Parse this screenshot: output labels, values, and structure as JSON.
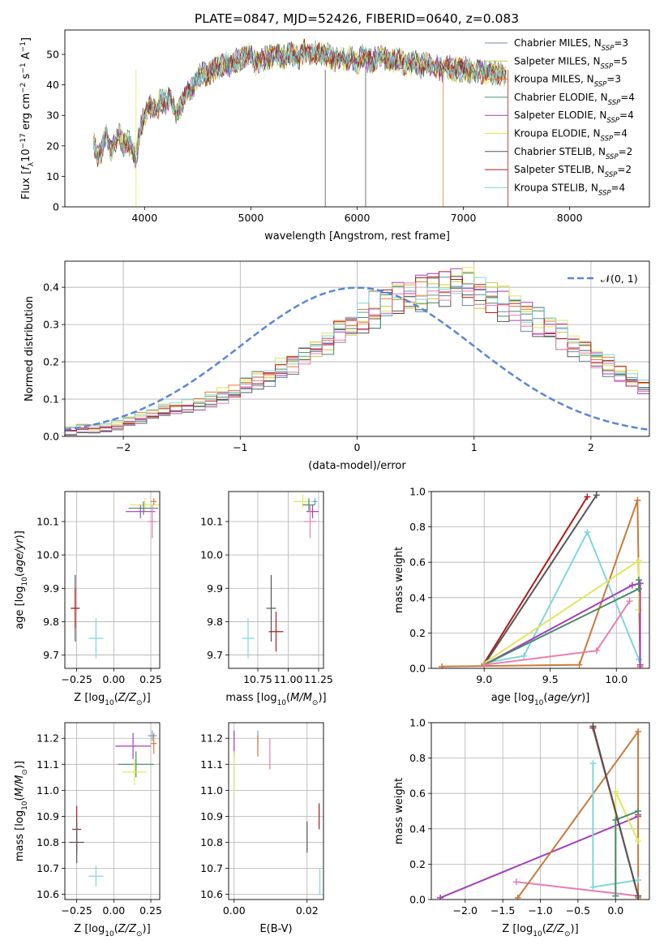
{
  "figure": {
    "title": "PLATE=0847, MJD=52426, FIBERID=0640, z=0.083"
  },
  "colors": {
    "chabrier_miles": "#6a8fa8",
    "salpeter_miles": "#c9cc3f",
    "kroupa_miles": "#e07a2e",
    "chabrier_elodie": "#4a8a6a",
    "salpeter_elodie": "#a43fb8",
    "kroupa_elodie": "#dfe85a",
    "chabrier_stelib": "#555555",
    "salpeter_stelib": "#b01c1c",
    "kroupa_stelib": "#7fd6dc",
    "normal_curve": "#5b86d2",
    "pink": "#e87fb0",
    "blue": "#6a9fe0",
    "orange2": "#c87a3a"
  },
  "chart_data": [
    {
      "id": "spectrum",
      "type": "line",
      "title": "",
      "xlabel": "wavelength [Angstrom, rest frame]",
      "ylabel": "Flux [f_λ 10^-17 erg cm^-2 s^-1 A^-1]",
      "xlim": [
        3250,
        8750
      ],
      "ylim": [
        0,
        58
      ],
      "xticks": [
        4000,
        5000,
        6000,
        7000,
        8000
      ],
      "yticks": [
        0,
        10,
        20,
        30,
        40,
        50
      ],
      "grid": false,
      "legend_position": "right",
      "legend": [
        {
          "label": "Chabrier MILES, N",
          "sub": "SSP",
          "suffix": "=3",
          "color": "chabrier_miles"
        },
        {
          "label": "Salpeter MILES, N",
          "sub": "SSP",
          "suffix": "=5",
          "color": "salpeter_miles"
        },
        {
          "label": "Kroupa MILES, N",
          "sub": "SSP",
          "suffix": "=3",
          "color": "kroupa_miles"
        },
        {
          "label": "Chabrier ELODIE, N",
          "sub": "SSP",
          "suffix": "=4",
          "color": "chabrier_elodie"
        },
        {
          "label": "Salpeter ELODIE, N",
          "sub": "SSP",
          "suffix": "=4",
          "color": "salpeter_elodie"
        },
        {
          "label": "Kroupa ELODIE, N",
          "sub": "SSP",
          "suffix": "=4",
          "color": "kroupa_elodie"
        },
        {
          "label": "Chabrier STELIB, N",
          "sub": "SSP",
          "suffix": "=2",
          "color": "chabrier_stelib"
        },
        {
          "label": "Salpeter STELIB, N",
          "sub": "SSP",
          "suffix": "=2",
          "color": "salpeter_stelib"
        },
        {
          "label": "Kroupa STELIB, N",
          "sub": "SSP",
          "suffix": "=4",
          "color": "kroupa_stelib"
        }
      ],
      "series_wavelength": [
        3520,
        3560,
        3600,
        3640,
        3680,
        3720,
        3760,
        3800,
        3840,
        3880,
        3920,
        3960,
        4000,
        4050,
        4100,
        4150,
        4200,
        4250,
        4300,
        4350,
        4400,
        4450,
        4500,
        4550,
        4600,
        4650,
        4700,
        4750,
        4800,
        4850,
        4900,
        4950,
        5000,
        5050,
        5100,
        5150,
        5200,
        5250,
        5300,
        5350,
        5400,
        5450,
        5500,
        5550,
        5600,
        5650,
        5700,
        5750,
        5800,
        5850,
        5900,
        5950,
        6000,
        6050,
        6100,
        6150,
        6200,
        6250,
        6300,
        6350,
        6400,
        6450,
        6500,
        6550,
        6600,
        6650,
        6700,
        6750,
        6800,
        6850,
        6900,
        6950,
        7000,
        7050,
        7100,
        7150,
        7200,
        7250,
        7300,
        7350,
        7400
      ],
      "series_flux": [
        22,
        16,
        19,
        24,
        18,
        21,
        24,
        20,
        22,
        19,
        16,
        26,
        30,
        33,
        31,
        35,
        34,
        36,
        30,
        34,
        38,
        39,
        42,
        44,
        43,
        45,
        46,
        47,
        46,
        48,
        48,
        49,
        50,
        47,
        48,
        49,
        49,
        50,
        49,
        50,
        50,
        49,
        51,
        50,
        51,
        50,
        50,
        49,
        48,
        49,
        48,
        49,
        47,
        50,
        48,
        48,
        49,
        49,
        48,
        48,
        48,
        47,
        47,
        47,
        46,
        47,
        46,
        46,
        45,
        46,
        45,
        45,
        45,
        45,
        44,
        45,
        44,
        44,
        44,
        44,
        43
      ]
    },
    {
      "id": "residuals",
      "type": "bar",
      "title": "",
      "xlabel": "(data-model)/error",
      "ylabel": "Normed distribution",
      "xlim": [
        -2.5,
        2.5
      ],
      "ylim": [
        0,
        0.47
      ],
      "xticks": [
        -2,
        -1,
        0,
        1,
        2
      ],
      "yticks": [
        0.0,
        0.1,
        0.2,
        0.3,
        0.4
      ],
      "grid": true,
      "legend_position": "top-right",
      "legend": [
        {
          "label": "𝒩(0, 1)",
          "color": "normal_curve",
          "dashed": true
        }
      ],
      "bin_edges_start": -2.5,
      "bin_width": 0.1,
      "base_hist": [
        0.015,
        0.02,
        0.02,
        0.025,
        0.03,
        0.04,
        0.05,
        0.06,
        0.07,
        0.075,
        0.08,
        0.085,
        0.1,
        0.11,
        0.12,
        0.14,
        0.15,
        0.16,
        0.18,
        0.2,
        0.22,
        0.24,
        0.26,
        0.28,
        0.3,
        0.32,
        0.34,
        0.36,
        0.37,
        0.38,
        0.39,
        0.4,
        0.4,
        0.41,
        0.4,
        0.38,
        0.37,
        0.36,
        0.34,
        0.33,
        0.31,
        0.29,
        0.27,
        0.25,
        0.23,
        0.21,
        0.19,
        0.17,
        0.15,
        0.13,
        0.11
      ]
    },
    {
      "id": "age_vs_Z",
      "type": "scatter",
      "xlabel": "Z [log10(Z/Z☉)]",
      "ylabel": "age  [log10(age/yr)]",
      "xlim": [
        -0.33,
        0.31
      ],
      "ylim": [
        9.66,
        10.19
      ],
      "xticks": [
        -0.25,
        0.0,
        0.25
      ],
      "yticks": [
        9.7,
        9.8,
        9.9,
        10.0,
        10.1
      ],
      "grid": true,
      "points": [
        {
          "x": 0.21,
          "y": 10.15,
          "xerr": 0.1,
          "yerr": 0.02,
          "color": "kroupa_elodie"
        },
        {
          "x": 0.2,
          "y": 10.14,
          "xerr": 0.1,
          "yerr": 0.02,
          "color": "chabrier_elodie"
        },
        {
          "x": 0.18,
          "y": 10.13,
          "xerr": 0.1,
          "yerr": 0.02,
          "color": "salpeter_elodie"
        },
        {
          "x": 0.27,
          "y": 10.16,
          "xerr": 0.02,
          "yerr": 0.01,
          "color": "kroupa_miles"
        },
        {
          "x": 0.26,
          "y": 10.1,
          "xerr": 0.03,
          "yerr": 0.05,
          "color": "pink"
        },
        {
          "x": -0.26,
          "y": 9.84,
          "xerr": 0.03,
          "yerr": 0.1,
          "color": "chabrier_stelib"
        },
        {
          "x": -0.26,
          "y": 9.84,
          "xerr": 0.03,
          "yerr": 0.06,
          "color": "salpeter_stelib"
        },
        {
          "x": -0.12,
          "y": 9.75,
          "xerr": 0.05,
          "yerr": 0.06,
          "color": "kroupa_stelib"
        }
      ]
    },
    {
      "id": "age_vs_mass",
      "type": "scatter",
      "xlabel": "mass [log10(M/M☉)]",
      "ylabel": "",
      "xlim": [
        10.51,
        11.29
      ],
      "ylim": [
        9.66,
        10.19
      ],
      "xticks": [
        10.75,
        11.0,
        11.25
      ],
      "yticks": [
        9.7,
        9.8,
        9.9,
        10.0,
        10.1
      ],
      "grid": true,
      "points": [
        {
          "x": 11.12,
          "y": 10.16,
          "xerr": 0.08,
          "yerr": 0.02,
          "color": "kroupa_elodie"
        },
        {
          "x": 11.17,
          "y": 10.15,
          "xerr": 0.05,
          "yerr": 0.02,
          "color": "chabrier_elodie"
        },
        {
          "x": 11.2,
          "y": 10.13,
          "xerr": 0.05,
          "yerr": 0.02,
          "color": "salpeter_elodie"
        },
        {
          "x": 11.22,
          "y": 10.16,
          "xerr": 0.02,
          "yerr": 0.01,
          "color": "blue"
        },
        {
          "x": 11.18,
          "y": 10.1,
          "xerr": 0.05,
          "yerr": 0.05,
          "color": "pink"
        },
        {
          "x": 10.86,
          "y": 9.84,
          "xerr": 0.04,
          "yerr": 0.1,
          "color": "chabrier_stelib"
        },
        {
          "x": 10.9,
          "y": 9.77,
          "xerr": 0.06,
          "yerr": 0.06,
          "color": "salpeter_stelib"
        },
        {
          "x": 10.67,
          "y": 9.75,
          "xerr": 0.05,
          "yerr": 0.06,
          "color": "kroupa_stelib"
        }
      ]
    },
    {
      "id": "massweight_vs_age",
      "type": "line",
      "xlabel": "age  [log10(age/yr)]",
      "ylabel": "mass weight",
      "xlim": [
        8.6,
        10.25
      ],
      "ylim": [
        0,
        1.0
      ],
      "xticks": [
        9.0,
        9.5,
        10.0
      ],
      "yticks": [
        0.0,
        0.2,
        0.4,
        0.6,
        0.8,
        1.0
      ],
      "grid": true,
      "series": [
        {
          "color": "salpeter_stelib",
          "x": [
            9.0,
            9.78
          ],
          "y": [
            0.03,
            0.97
          ]
        },
        {
          "color": "chabrier_stelib",
          "x": [
            9.0,
            9.85
          ],
          "y": [
            0.02,
            0.98
          ]
        },
        {
          "color": "orange2",
          "x": [
            8.68,
            9.72,
            10.16,
            10.18
          ],
          "y": [
            0.01,
            0.02,
            0.95,
            0.01
          ]
        },
        {
          "color": "kroupa_stelib",
          "x": [
            9.0,
            9.3,
            9.78,
            10.17
          ],
          "y": [
            0.03,
            0.07,
            0.77,
            0.05
          ]
        },
        {
          "color": "kroupa_elodie",
          "x": [
            9.0,
            10.17,
            10.17
          ],
          "y": [
            0.03,
            0.61,
            0.33
          ]
        },
        {
          "color": "salpeter_elodie",
          "x": [
            9.0,
            10.12,
            10.18,
            10.18
          ],
          "y": [
            0.02,
            0.47,
            0.48,
            0.02
          ]
        },
        {
          "color": "chabrier_elodie",
          "x": [
            9.0,
            10.17,
            10.17
          ],
          "y": [
            0.02,
            0.45,
            0.5
          ]
        },
        {
          "color": "pink",
          "x": [
            9.0,
            9.85,
            10.1
          ],
          "y": [
            0.02,
            0.1,
            0.38
          ]
        }
      ]
    },
    {
      "id": "mass_vs_Z",
      "type": "scatter",
      "xlabel": "Z [log10(Z/Z☉)]",
      "ylabel": "mass [log10(M/M☉)]",
      "xlim": [
        -0.33,
        0.31
      ],
      "ylim": [
        10.58,
        11.26
      ],
      "xticks": [
        -0.25,
        0.0,
        0.25
      ],
      "yticks": [
        10.6,
        10.7,
        10.8,
        10.9,
        11.0,
        11.1,
        11.2
      ],
      "grid": true,
      "points": [
        {
          "x": 0.26,
          "y": 11.21,
          "xerr": 0.03,
          "yerr": 0.02,
          "color": "blue"
        },
        {
          "x": 0.27,
          "y": 11.18,
          "xerr": 0.02,
          "yerr": 0.04,
          "color": "kroupa_miles"
        },
        {
          "x": 0.13,
          "y": 11.17,
          "xerr": 0.12,
          "yerr": 0.05,
          "color": "salpeter_elodie"
        },
        {
          "x": 0.15,
          "y": 11.1,
          "xerr": 0.12,
          "yerr": 0.05,
          "color": "chabrier_elodie"
        },
        {
          "x": 0.14,
          "y": 11.07,
          "xerr": 0.08,
          "yerr": 0.05,
          "color": "kroupa_elodie"
        },
        {
          "x": -0.25,
          "y": 10.85,
          "xerr": 0.03,
          "yerr": 0.09,
          "color": "salpeter_stelib"
        },
        {
          "x": -0.25,
          "y": 10.8,
          "xerr": 0.05,
          "yerr": 0.08,
          "color": "chabrier_stelib"
        },
        {
          "x": -0.12,
          "y": 10.67,
          "xerr": 0.05,
          "yerr": 0.04,
          "color": "kroupa_stelib"
        }
      ]
    },
    {
      "id": "mass_vs_ebv",
      "type": "scatter",
      "xlabel": "E(B-V)",
      "ylabel": "",
      "xlim": [
        -0.0015,
        0.0245
      ],
      "ylim": [
        10.58,
        11.26
      ],
      "xticks": [
        0.0,
        0.02
      ],
      "xticklabels": [
        "0.00",
        "0.02"
      ],
      "yticks": [
        10.6,
        10.7,
        10.8,
        10.9,
        11.0,
        11.1,
        11.2
      ],
      "grid": true,
      "points": [
        {
          "x": 0.0,
          "y": 11.18,
          "xerr": 0.0,
          "yerr": 0.05,
          "color": "salpeter_elodie"
        },
        {
          "x": 0.0,
          "y": 11.07,
          "xerr": 0.0,
          "yerr": 0.08,
          "color": "kroupa_elodie"
        },
        {
          "x": 0.0065,
          "y": 11.19,
          "xerr": 0.0,
          "yerr": 0.04,
          "color": "blue"
        },
        {
          "x": 0.0065,
          "y": 11.17,
          "xerr": 0.0,
          "yerr": 0.04,
          "color": "kroupa_miles"
        },
        {
          "x": 0.0098,
          "y": 11.14,
          "xerr": 0.0,
          "yerr": 0.06,
          "color": "pink"
        },
        {
          "x": 0.02,
          "y": 10.82,
          "xerr": 0.0,
          "yerr": 0.06,
          "color": "chabrier_stelib"
        },
        {
          "x": 0.0233,
          "y": 10.9,
          "xerr": 0.0,
          "yerr": 0.05,
          "color": "salpeter_stelib"
        },
        {
          "x": 0.0235,
          "y": 10.65,
          "xerr": 0.0,
          "yerr": 0.05,
          "color": "kroupa_stelib"
        }
      ]
    },
    {
      "id": "massweight_vs_Z",
      "type": "line",
      "xlabel": "Z [log10(Z/Z☉)]",
      "ylabel": "mass weight",
      "xlim": [
        -2.45,
        0.45
      ],
      "ylim": [
        0,
        1.0
      ],
      "xticks": [
        -2.0,
        -1.5,
        -1.0,
        -0.5,
        0.0
      ],
      "yticks": [
        0.0,
        0.2,
        0.4,
        0.6,
        0.8,
        1.0
      ],
      "grid": true,
      "series": [
        {
          "color": "salpeter_elodie",
          "x": [
            -2.33,
            0.3,
            0.3
          ],
          "y": [
            0.01,
            0.47,
            0.48
          ]
        },
        {
          "color": "pink",
          "x": [
            -1.32,
            0.3
          ],
          "y": [
            0.1,
            0.02
          ]
        },
        {
          "color": "orange2",
          "x": [
            -1.3,
            0.3,
            0.3
          ],
          "y": [
            0.01,
            0.95,
            0.01
          ]
        },
        {
          "color": "kroupa_stelib",
          "x": [
            -0.3,
            -0.3,
            0.3
          ],
          "y": [
            0.77,
            0.07,
            0.11
          ]
        },
        {
          "color": "kroupa_elodie",
          "x": [
            0.0,
            0.0,
            0.3
          ],
          "y": [
            0.02,
            0.61,
            0.33
          ]
        },
        {
          "color": "chabrier_elodie",
          "x": [
            0.0,
            0.0,
            0.3
          ],
          "y": [
            0.02,
            0.45,
            0.5
          ]
        },
        {
          "color": "salpeter_stelib",
          "x": [
            -0.3,
            0.3
          ],
          "y": [
            0.97,
            0.02
          ]
        },
        {
          "color": "chabrier_stelib",
          "x": [
            -0.3,
            0.3
          ],
          "y": [
            0.98,
            0.02
          ]
        }
      ]
    }
  ]
}
